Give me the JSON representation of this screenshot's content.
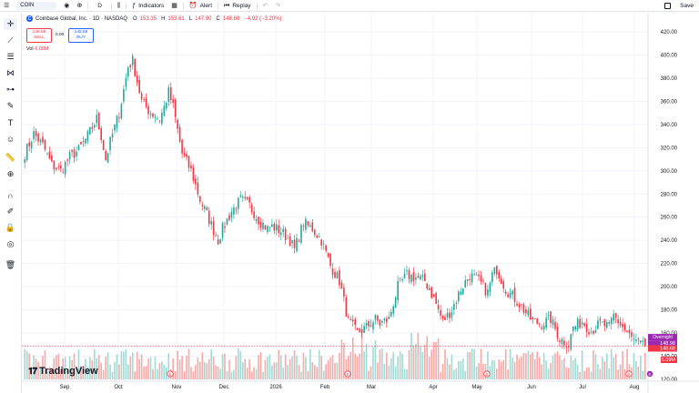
{
  "toolbar": {
    "symbol": "COIN",
    "interval": "D",
    "indicators_label": "Indicators",
    "alert_label": "Alert",
    "replay_label": "Replay",
    "save_label": "Save"
  },
  "legend": {
    "title": "Coinbase Global, Inc. · 1D · NASDAQ",
    "logo_letter": "C",
    "o_label": "O",
    "o_value": "153.35",
    "h_label": "H",
    "h_value": "153.61",
    "l_label": "L",
    "l_value": "147.90",
    "c_label": "C",
    "c_value": "148.68",
    "change": "−4.92 (−3.20%)",
    "sell_price": "148.68",
    "sell_label": "SELL",
    "spread": "0.00",
    "buy_price": "148.68",
    "buy_label": "BUY",
    "vol_label": "Vol",
    "vol_value": "6.09M"
  },
  "price_axis": {
    "ticks": [
      "420.00",
      "400.00",
      "380.00",
      "360.00",
      "340.00",
      "320.00",
      "300.00",
      "280.00",
      "260.00",
      "240.00",
      "220.00",
      "200.00",
      "180.00",
      "160.00",
      "140.00",
      "120.00"
    ],
    "overnight_label": "Overnight",
    "overnight_value": "148.98",
    "last_price": "148.68",
    "volume_tag": "6.09M"
  },
  "time_axis": {
    "labels": [
      "Sep",
      "Oct",
      "Nov",
      "Dec",
      "2026",
      "Feb",
      "Mar",
      "Apr",
      "May",
      "Jun",
      "Jul",
      "Aug"
    ]
  },
  "brand_text": "TradingView",
  "event_markers": [
    "E",
    "E",
    "E",
    "E",
    "E"
  ],
  "colors": {
    "up": "#26a69a",
    "down": "#f23645",
    "up_vol": "#a2d9d3",
    "down_vol": "#f7a9a7",
    "overnight": "#9c27b0",
    "accent": "#2962ff"
  },
  "chart_data": {
    "type": "candlestick",
    "ylim": [
      120,
      420
    ],
    "anchors": [
      [
        0,
        315
      ],
      [
        4,
        332
      ],
      [
        8,
        322
      ],
      [
        12,
        305
      ],
      [
        16,
        300
      ],
      [
        20,
        312
      ],
      [
        24,
        318
      ],
      [
        28,
        330
      ],
      [
        32,
        345
      ],
      [
        34,
        330
      ],
      [
        36,
        310
      ],
      [
        38,
        325
      ],
      [
        42,
        350
      ],
      [
        46,
        390
      ],
      [
        48,
        395
      ],
      [
        52,
        360
      ],
      [
        56,
        350
      ],
      [
        60,
        345
      ],
      [
        62,
        355
      ],
      [
        64,
        368
      ],
      [
        66,
        355
      ],
      [
        70,
        315
      ],
      [
        74,
        300
      ],
      [
        78,
        275
      ],
      [
        82,
        258
      ],
      [
        86,
        240
      ],
      [
        88,
        250
      ],
      [
        92,
        265
      ],
      [
        96,
        275
      ],
      [
        100,
        270
      ],
      [
        104,
        258
      ],
      [
        108,
        250
      ],
      [
        110,
        252
      ],
      [
        114,
        248
      ],
      [
        118,
        240
      ],
      [
        120,
        232
      ],
      [
        124,
        255
      ],
      [
        128,
        250
      ],
      [
        132,
        240
      ],
      [
        136,
        218
      ],
      [
        140,
        205
      ],
      [
        144,
        170
      ],
      [
        148,
        160
      ],
      [
        152,
        165
      ],
      [
        156,
        172
      ],
      [
        158,
        168
      ],
      [
        162,
        172
      ],
      [
        166,
        200
      ],
      [
        170,
        210
      ],
      [
        174,
        208
      ],
      [
        178,
        205
      ],
      [
        182,
        190
      ],
      [
        186,
        170
      ],
      [
        190,
        180
      ],
      [
        194,
        198
      ],
      [
        198,
        210
      ],
      [
        202,
        205
      ],
      [
        206,
        195
      ],
      [
        208,
        210
      ],
      [
        210,
        215
      ],
      [
        214,
        198
      ],
      [
        218,
        190
      ],
      [
        222,
        180
      ],
      [
        226,
        170
      ],
      [
        230,
        168
      ],
      [
        234,
        172
      ],
      [
        238,
        155
      ],
      [
        242,
        150
      ],
      [
        244,
        165
      ],
      [
        248,
        170
      ],
      [
        252,
        162
      ],
      [
        256,
        168
      ],
      [
        260,
        165
      ],
      [
        262,
        175
      ],
      [
        266,
        165
      ],
      [
        268,
        160
      ],
      [
        270,
        155
      ],
      [
        272,
        152
      ],
      [
        274,
        150
      ],
      [
        276,
        147
      ]
    ],
    "n_candles": 277,
    "last_close": 148.68
  }
}
